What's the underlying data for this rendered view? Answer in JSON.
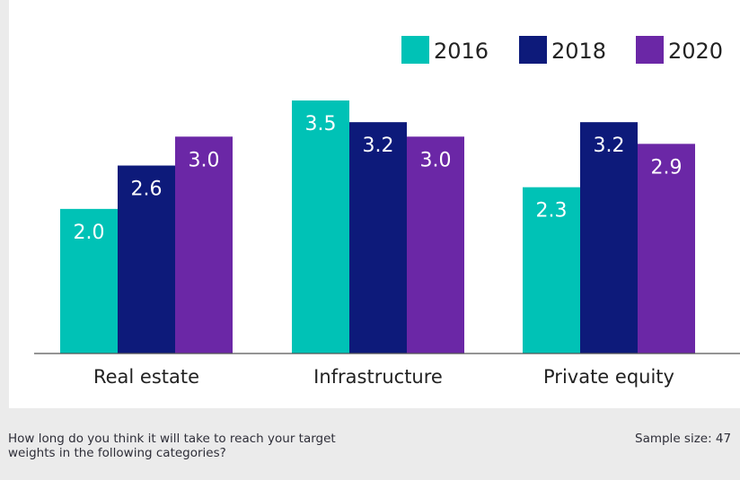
{
  "chart_data": {
    "type": "bar",
    "categories": [
      "Real estate",
      "Infrastructure",
      "Private equity"
    ],
    "series": [
      {
        "name": "2016",
        "values": [
          2.0,
          3.5,
          2.3
        ],
        "color": "#00c2b6"
      },
      {
        "name": "2018",
        "values": [
          2.6,
          3.2,
          3.2
        ],
        "color": "#0d1a7a"
      },
      {
        "name": "2020",
        "values": [
          3.0,
          3.0,
          2.9
        ],
        "color": "#6b27a6"
      }
    ],
    "value_labels": [
      [
        "2.0",
        "3.5",
        "2.3"
      ],
      [
        "2.6",
        "3.2",
        "3.2"
      ],
      [
        "3.0",
        "3.0",
        "2.9"
      ]
    ],
    "ylim": [
      0,
      3.5
    ],
    "legend": "top-right",
    "grid": false,
    "label_color": "#ffffff",
    "axis_color": "#555555"
  },
  "footer": {
    "question": "How long do you think it will take to reach your target weights in the following categories?",
    "sample": "Sample size: 47"
  }
}
